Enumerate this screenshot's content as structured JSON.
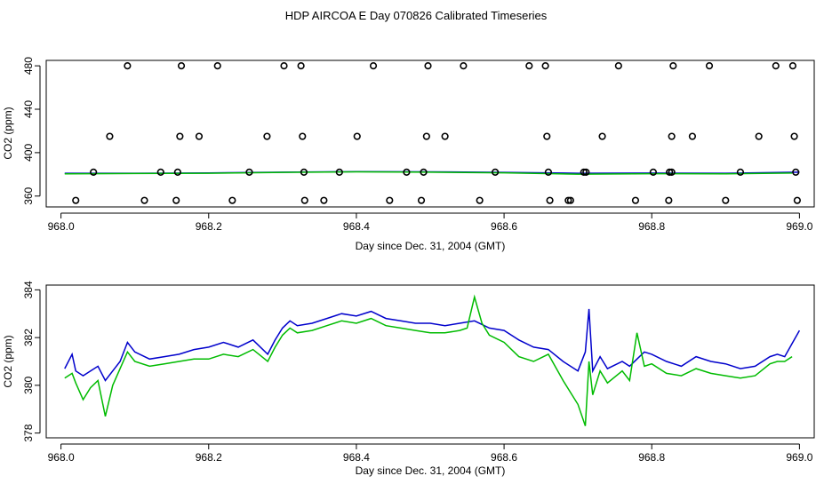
{
  "title": "HDP AIRCOA E  Day 070826  Calibrated Timeseries",
  "chart_data": [
    {
      "type": "scatter",
      "xlabel": "Day since Dec. 31, 2004 (GMT)",
      "ylabel": "CO2 (ppm)",
      "xlim": [
        967.98,
        969.02
      ],
      "ylim": [
        350,
        485
      ],
      "xticks": [
        968.0,
        968.2,
        968.4,
        968.6,
        968.8,
        969.0
      ],
      "xtick_labels": [
        "968.0",
        "968.2",
        "968.4",
        "968.6",
        "968.8",
        "969.0"
      ],
      "yticks": [
        360,
        400,
        440,
        480
      ],
      "ytick_labels": [
        "360",
        "400",
        "440",
        "480"
      ],
      "grid": false,
      "colors": {
        "blue": "#0000cc",
        "green": "#00bb00",
        "markers": "#000000"
      },
      "calibration_points": [
        {
          "x": 968.09,
          "y": 480
        },
        {
          "x": 968.163,
          "y": 480
        },
        {
          "x": 968.212,
          "y": 480
        },
        {
          "x": 968.302,
          "y": 480
        },
        {
          "x": 968.325,
          "y": 480
        },
        {
          "x": 968.423,
          "y": 480
        },
        {
          "x": 968.497,
          "y": 480
        },
        {
          "x": 968.545,
          "y": 480
        },
        {
          "x": 968.634,
          "y": 480
        },
        {
          "x": 968.656,
          "y": 480
        },
        {
          "x": 968.755,
          "y": 480
        },
        {
          "x": 968.829,
          "y": 480
        },
        {
          "x": 968.878,
          "y": 480
        },
        {
          "x": 968.968,
          "y": 480
        },
        {
          "x": 968.991,
          "y": 480
        },
        {
          "x": 968.066,
          "y": 415
        },
        {
          "x": 968.161,
          "y": 415
        },
        {
          "x": 968.187,
          "y": 415
        },
        {
          "x": 968.279,
          "y": 415
        },
        {
          "x": 968.327,
          "y": 415
        },
        {
          "x": 968.401,
          "y": 415
        },
        {
          "x": 968.495,
          "y": 415
        },
        {
          "x": 968.52,
          "y": 415
        },
        {
          "x": 968.658,
          "y": 415
        },
        {
          "x": 968.733,
          "y": 415
        },
        {
          "x": 968.827,
          "y": 415
        },
        {
          "x": 968.855,
          "y": 415
        },
        {
          "x": 968.945,
          "y": 415
        },
        {
          "x": 968.993,
          "y": 415
        },
        {
          "x": 968.044,
          "y": 382
        },
        {
          "x": 968.135,
          "y": 382
        },
        {
          "x": 968.158,
          "y": 382
        },
        {
          "x": 968.255,
          "y": 382
        },
        {
          "x": 968.329,
          "y": 382
        },
        {
          "x": 968.377,
          "y": 382
        },
        {
          "x": 968.468,
          "y": 382
        },
        {
          "x": 968.491,
          "y": 382
        },
        {
          "x": 968.588,
          "y": 382
        },
        {
          "x": 968.66,
          "y": 382
        },
        {
          "x": 968.708,
          "y": 382
        },
        {
          "x": 968.711,
          "y": 382
        },
        {
          "x": 968.802,
          "y": 382
        },
        {
          "x": 968.824,
          "y": 382
        },
        {
          "x": 968.827,
          "y": 382
        },
        {
          "x": 968.92,
          "y": 382
        },
        {
          "x": 968.995,
          "y": 382
        },
        {
          "x": 968.02,
          "y": 356
        },
        {
          "x": 968.113,
          "y": 356
        },
        {
          "x": 968.156,
          "y": 356
        },
        {
          "x": 968.232,
          "y": 356
        },
        {
          "x": 968.33,
          "y": 356
        },
        {
          "x": 968.356,
          "y": 356
        },
        {
          "x": 968.445,
          "y": 356
        },
        {
          "x": 968.488,
          "y": 356
        },
        {
          "x": 968.567,
          "y": 356
        },
        {
          "x": 968.662,
          "y": 356
        },
        {
          "x": 968.687,
          "y": 356
        },
        {
          "x": 968.69,
          "y": 356
        },
        {
          "x": 968.778,
          "y": 356
        },
        {
          "x": 968.823,
          "y": 356
        },
        {
          "x": 968.9,
          "y": 356
        },
        {
          "x": 968.997,
          "y": 356
        }
      ],
      "series": [
        {
          "color": "blue",
          "x": [
            968.005,
            968.1,
            968.2,
            968.3,
            968.4,
            968.5,
            968.6,
            968.7,
            968.8,
            968.9,
            969.0
          ],
          "values": [
            381,
            381,
            381.3,
            382,
            382.5,
            382.3,
            381.8,
            381,
            381.2,
            381,
            382
          ]
        },
        {
          "color": "green",
          "x": [
            968.005,
            968.1,
            968.2,
            968.3,
            968.4,
            968.5,
            968.6,
            968.7,
            968.8,
            968.9,
            968.99
          ],
          "values": [
            380.5,
            380.8,
            381,
            381.8,
            382.3,
            382,
            381.4,
            380.2,
            380.6,
            380.5,
            381.2
          ]
        }
      ]
    },
    {
      "type": "line",
      "xlabel": "Day since Dec. 31, 2004 (GMT)",
      "ylabel": "CO2 (ppm)",
      "xlim": [
        967.98,
        969.02
      ],
      "ylim": [
        377.8,
        384.2
      ],
      "xticks": [
        968.0,
        968.2,
        968.4,
        968.6,
        968.8,
        969.0
      ],
      "xtick_labels": [
        "968.0",
        "968.2",
        "968.4",
        "968.6",
        "968.8",
        "969.0"
      ],
      "yticks": [
        378,
        380,
        382,
        384
      ],
      "ytick_labels": [
        "378",
        "380",
        "382",
        "384"
      ],
      "grid": false,
      "series": [
        {
          "color": "blue",
          "x": [
            968.005,
            968.015,
            968.02,
            968.03,
            968.04,
            968.05,
            968.06,
            968.07,
            968.08,
            968.09,
            968.1,
            968.12,
            968.14,
            968.16,
            968.18,
            968.2,
            968.22,
            968.24,
            968.26,
            968.28,
            968.29,
            968.3,
            968.31,
            968.32,
            968.34,
            968.36,
            968.38,
            968.4,
            968.42,
            968.44,
            968.46,
            968.48,
            968.5,
            968.52,
            968.54,
            968.56,
            968.58,
            968.6,
            968.62,
            968.64,
            968.66,
            968.68,
            968.7,
            968.71,
            968.715,
            968.72,
            968.73,
            968.74,
            968.76,
            968.77,
            968.78,
            968.79,
            968.8,
            968.82,
            968.84,
            968.86,
            968.88,
            968.9,
            968.92,
            968.94,
            968.96,
            968.97,
            968.98,
            969.0
          ],
          "values": [
            380.7,
            381.3,
            380.6,
            380.4,
            380.6,
            380.8,
            380.2,
            380.6,
            381.0,
            381.8,
            381.4,
            381.1,
            381.2,
            381.3,
            381.5,
            381.6,
            381.8,
            381.6,
            381.9,
            381.3,
            381.9,
            382.4,
            382.7,
            382.5,
            382.6,
            382.8,
            383.0,
            382.9,
            383.1,
            382.8,
            382.7,
            382.6,
            382.6,
            382.5,
            382.6,
            382.7,
            382.4,
            382.3,
            381.9,
            381.6,
            381.5,
            381.0,
            380.6,
            381.4,
            383.2,
            380.6,
            381.2,
            380.7,
            381.0,
            380.8,
            381.1,
            381.4,
            381.3,
            381.0,
            380.8,
            381.2,
            381.0,
            380.9,
            380.7,
            380.8,
            381.2,
            381.3,
            381.2,
            382.3
          ]
        },
        {
          "color": "green",
          "x": [
            968.005,
            968.015,
            968.02,
            968.03,
            968.04,
            968.05,
            968.06,
            968.07,
            968.08,
            968.09,
            968.1,
            968.12,
            968.14,
            968.16,
            968.18,
            968.2,
            968.22,
            968.24,
            968.26,
            968.28,
            968.29,
            968.3,
            968.31,
            968.32,
            968.34,
            968.36,
            968.38,
            968.4,
            968.42,
            968.44,
            968.46,
            968.48,
            968.5,
            968.52,
            968.54,
            968.55,
            968.56,
            968.57,
            968.58,
            968.6,
            968.62,
            968.64,
            968.66,
            968.68,
            968.7,
            968.71,
            968.715,
            968.72,
            968.73,
            968.74,
            968.76,
            968.77,
            968.78,
            968.79,
            968.8,
            968.82,
            968.84,
            968.86,
            968.88,
            968.9,
            968.92,
            968.94,
            968.96,
            968.97,
            968.98,
            968.99
          ],
          "values": [
            380.3,
            380.5,
            380.1,
            379.4,
            379.9,
            380.2,
            378.7,
            380.0,
            380.7,
            381.4,
            381.0,
            380.8,
            380.9,
            381.0,
            381.1,
            381.1,
            381.3,
            381.2,
            381.5,
            381.0,
            381.6,
            382.1,
            382.4,
            382.2,
            382.3,
            382.5,
            382.7,
            382.6,
            382.8,
            382.5,
            382.4,
            382.3,
            382.2,
            382.2,
            382.3,
            382.4,
            383.7,
            382.6,
            382.1,
            381.8,
            381.2,
            381.0,
            381.3,
            380.2,
            379.2,
            378.3,
            381.0,
            379.6,
            380.6,
            380.1,
            380.6,
            380.2,
            382.2,
            380.8,
            380.9,
            380.5,
            380.4,
            380.7,
            380.5,
            380.4,
            380.3,
            380.4,
            380.9,
            381.0,
            381.0,
            381.2
          ]
        }
      ]
    }
  ]
}
